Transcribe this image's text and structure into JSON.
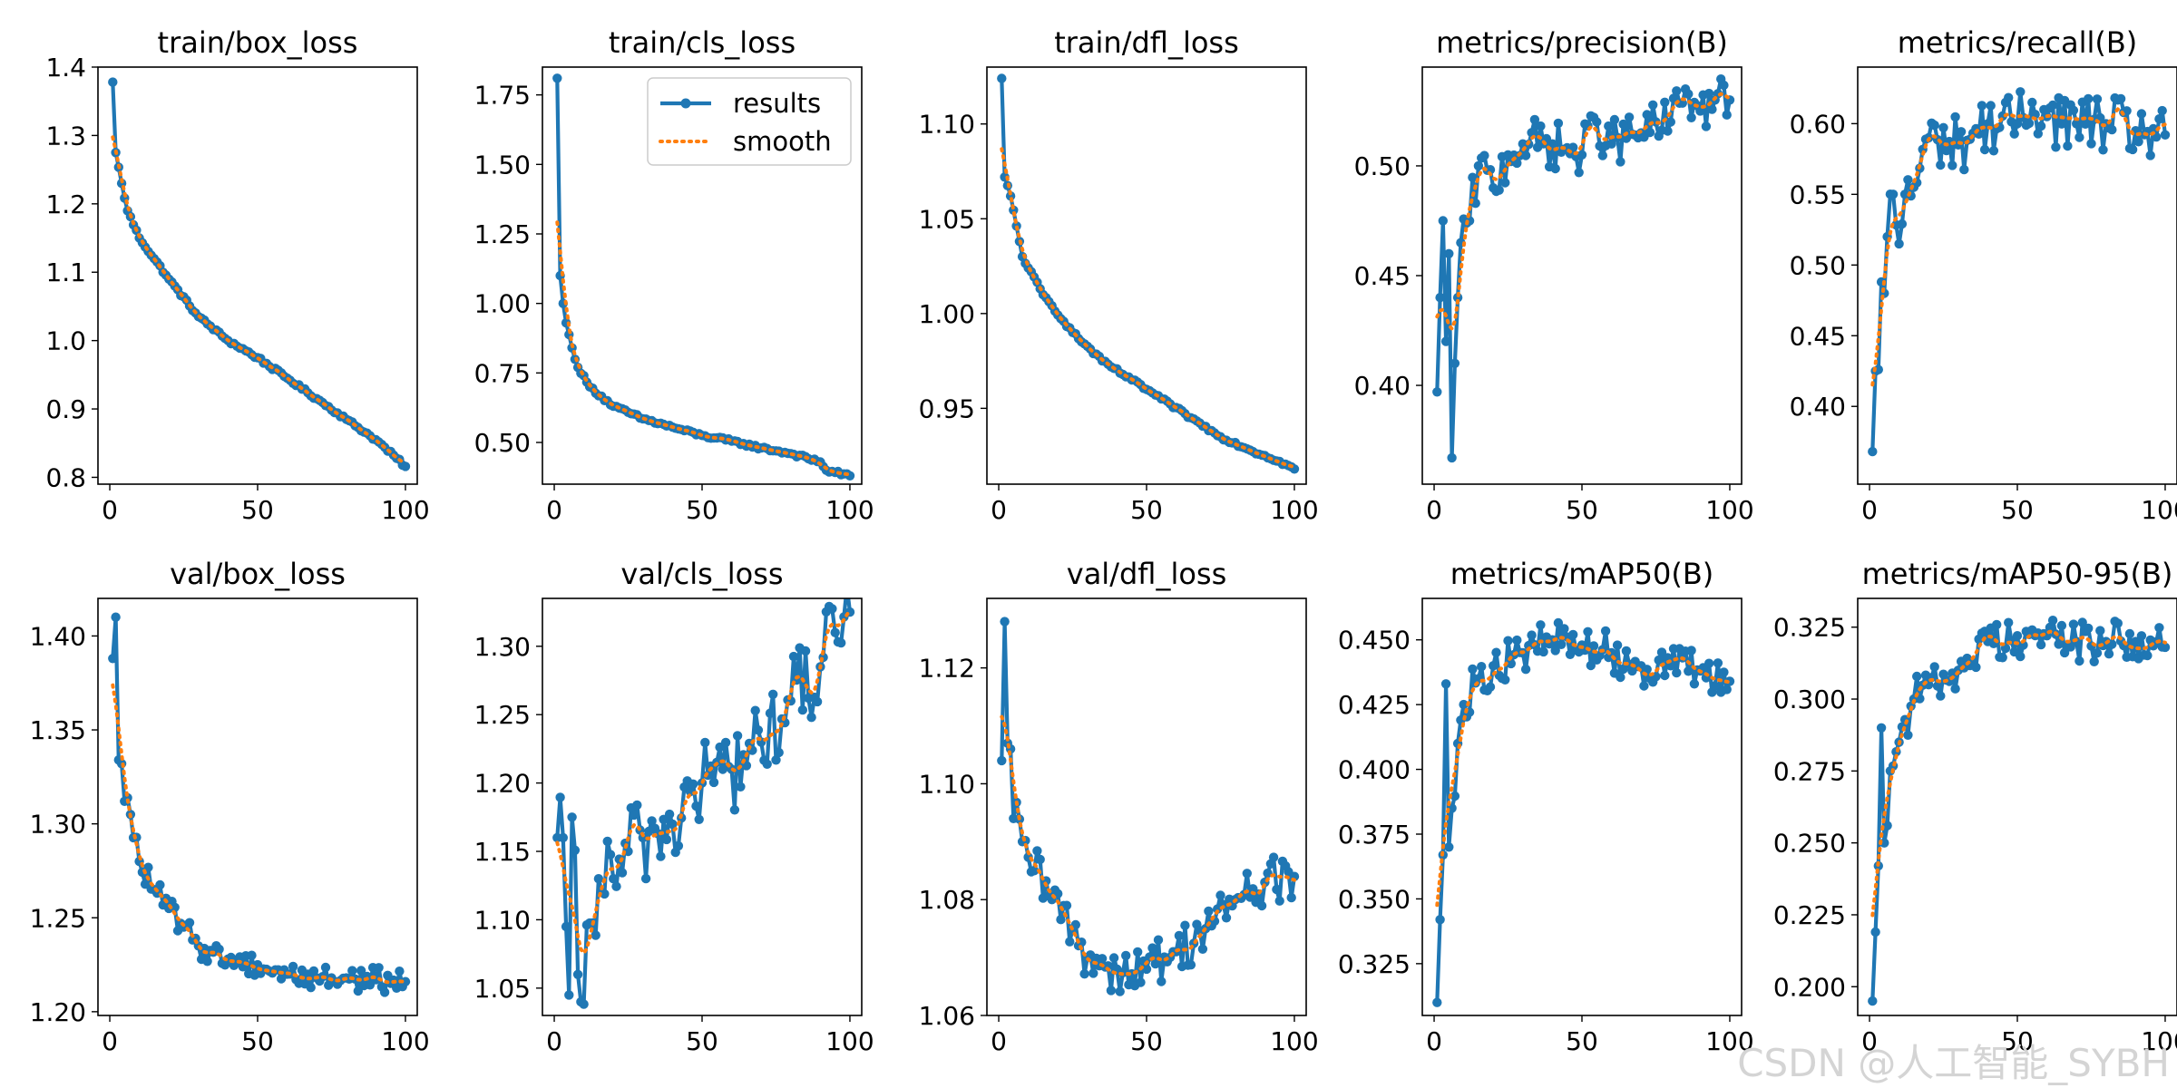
{
  "watermark": "CSDN @人工智能_SYBH",
  "colors": {
    "results": "#1f77b4",
    "smooth": "#ff7f0e",
    "axis": "#000000"
  },
  "legend": {
    "results": "results",
    "smooth": "smooth",
    "location": "upper right",
    "panel": "train/cls_loss"
  },
  "chart_data": [
    {
      "type": "line",
      "title": "train/box_loss",
      "xlim": [
        -4,
        104
      ],
      "ylim": [
        0.79,
        1.4
      ],
      "xticks": [
        0,
        50,
        100
      ],
      "yticks": [
        0.8,
        0.9,
        1.0,
        1.1,
        1.2,
        1.3,
        1.4
      ],
      "x": [
        1,
        100
      ],
      "start": 1.378,
      "end": 0.816,
      "key_points": [
        [
          1,
          1.378
        ],
        [
          2,
          1.275
        ],
        [
          4,
          1.23
        ],
        [
          6,
          1.19
        ],
        [
          10,
          1.15
        ],
        [
          20,
          1.09
        ],
        [
          30,
          1.035
        ],
        [
          40,
          1.0
        ],
        [
          50,
          0.975
        ],
        [
          60,
          0.945
        ],
        [
          70,
          0.915
        ],
        [
          80,
          0.885
        ],
        [
          90,
          0.855
        ],
        [
          100,
          0.816
        ]
      ],
      "series": [
        {
          "name": "results"
        },
        {
          "name": "smooth"
        }
      ]
    },
    {
      "type": "line",
      "title": "train/cls_loss",
      "xlim": [
        -4,
        104
      ],
      "ylim": [
        0.35,
        1.85
      ],
      "xticks": [
        0,
        50,
        100
      ],
      "yticks": [
        0.5,
        0.75,
        1.0,
        1.25,
        1.5,
        1.75
      ],
      "start": 1.81,
      "end": 0.38,
      "key_points": [
        [
          1,
          1.81
        ],
        [
          2,
          1.1
        ],
        [
          3,
          1.0
        ],
        [
          4,
          0.93
        ],
        [
          6,
          0.84
        ],
        [
          8,
          0.77
        ],
        [
          12,
          0.7
        ],
        [
          20,
          0.63
        ],
        [
          30,
          0.585
        ],
        [
          40,
          0.555
        ],
        [
          50,
          0.525
        ],
        [
          60,
          0.505
        ],
        [
          70,
          0.48
        ],
        [
          80,
          0.46
        ],
        [
          90,
          0.43
        ],
        [
          92,
          0.4
        ],
        [
          100,
          0.38
        ]
      ],
      "series": [
        {
          "name": "results"
        },
        {
          "name": "smooth"
        }
      ]
    },
    {
      "type": "line",
      "title": "train/dfl_loss",
      "xlim": [
        -4,
        104
      ],
      "ylim": [
        0.91,
        1.13
      ],
      "xticks": [
        0,
        50,
        100
      ],
      "yticks": [
        0.95,
        1.0,
        1.05,
        1.1
      ],
      "start": 1.124,
      "end": 0.918,
      "key_points": [
        [
          1,
          1.124
        ],
        [
          2,
          1.072
        ],
        [
          4,
          1.062
        ],
        [
          8,
          1.03
        ],
        [
          15,
          1.01
        ],
        [
          25,
          0.99
        ],
        [
          35,
          0.975
        ],
        [
          45,
          0.965
        ],
        [
          55,
          0.955
        ],
        [
          65,
          0.945
        ],
        [
          75,
          0.935
        ],
        [
          85,
          0.928
        ],
        [
          95,
          0.922
        ],
        [
          100,
          0.918
        ]
      ],
      "series": [
        {
          "name": "results"
        },
        {
          "name": "smooth"
        }
      ]
    },
    {
      "type": "line",
      "title": "metrics/precision(B)",
      "xlim": [
        -4,
        104
      ],
      "ylim": [
        0.355,
        0.545
      ],
      "xticks": [
        0,
        50,
        100
      ],
      "yticks": [
        0.4,
        0.45,
        0.5
      ],
      "key_points": [
        [
          1,
          0.397
        ],
        [
          2,
          0.44
        ],
        [
          3,
          0.475
        ],
        [
          4,
          0.42
        ],
        [
          5,
          0.46
        ],
        [
          6,
          0.367
        ],
        [
          7,
          0.41
        ],
        [
          8,
          0.44
        ],
        [
          9,
          0.465
        ],
        [
          12,
          0.475
        ],
        [
          15,
          0.5
        ],
        [
          20,
          0.49
        ],
        [
          25,
          0.505
        ],
        [
          30,
          0.51
        ],
        [
          40,
          0.51
        ],
        [
          50,
          0.505
        ],
        [
          55,
          0.52
        ],
        [
          60,
          0.51
        ],
        [
          70,
          0.515
        ],
        [
          80,
          0.52
        ],
        [
          85,
          0.535
        ],
        [
          90,
          0.525
        ],
        [
          95,
          0.53
        ],
        [
          100,
          0.53
        ]
      ],
      "series": [
        {
          "name": "results"
        },
        {
          "name": "smooth"
        }
      ]
    },
    {
      "type": "line",
      "title": "metrics/recall(B)",
      "xlim": [
        -4,
        104
      ],
      "ylim": [
        0.345,
        0.64
      ],
      "xticks": [
        0,
        50,
        100
      ],
      "yticks": [
        0.4,
        0.45,
        0.5,
        0.55,
        0.6
      ],
      "key_points": [
        [
          1,
          0.368
        ],
        [
          2,
          0.425
        ],
        [
          3,
          0.426
        ],
        [
          4,
          0.488
        ],
        [
          5,
          0.48
        ],
        [
          6,
          0.52
        ],
        [
          8,
          0.55
        ],
        [
          10,
          0.515
        ],
        [
          12,
          0.55
        ],
        [
          15,
          0.555
        ],
        [
          20,
          0.59
        ],
        [
          30,
          0.585
        ],
        [
          40,
          0.6
        ],
        [
          50,
          0.6
        ],
        [
          55,
          0.615
        ],
        [
          60,
          0.605
        ],
        [
          70,
          0.6
        ],
        [
          80,
          0.6
        ],
        [
          90,
          0.595
        ],
        [
          100,
          0.592
        ]
      ],
      "series": [
        {
          "name": "results"
        },
        {
          "name": "smooth"
        }
      ]
    },
    {
      "type": "line",
      "title": "val/box_loss",
      "xlim": [
        -4,
        104
      ],
      "ylim": [
        1.198,
        1.42
      ],
      "xticks": [
        0,
        50,
        100
      ],
      "yticks": [
        1.2,
        1.25,
        1.3,
        1.35,
        1.4
      ],
      "key_points": [
        [
          1,
          1.388
        ],
        [
          2,
          1.41
        ],
        [
          3,
          1.334
        ],
        [
          4,
          1.332
        ],
        [
          5,
          1.312
        ],
        [
          7,
          1.305
        ],
        [
          10,
          1.28
        ],
        [
          15,
          1.265
        ],
        [
          20,
          1.255
        ],
        [
          25,
          1.245
        ],
        [
          30,
          1.235
        ],
        [
          40,
          1.228
        ],
        [
          50,
          1.225
        ],
        [
          60,
          1.22
        ],
        [
          70,
          1.218
        ],
        [
          80,
          1.218
        ],
        [
          90,
          1.217
        ],
        [
          100,
          1.216
        ]
      ],
      "series": [
        {
          "name": "results"
        },
        {
          "name": "smooth"
        }
      ]
    },
    {
      "type": "line",
      "title": "val/cls_loss",
      "xlim": [
        -4,
        104
      ],
      "ylim": [
        1.03,
        1.335
      ],
      "xticks": [
        0,
        50,
        100
      ],
      "yticks": [
        1.05,
        1.1,
        1.15,
        1.2,
        1.25,
        1.3
      ],
      "key_points": [
        [
          1,
          1.16
        ],
        [
          3,
          1.16
        ],
        [
          4,
          1.095
        ],
        [
          5,
          1.045
        ],
        [
          6,
          1.175
        ],
        [
          8,
          1.06
        ],
        [
          9,
          1.04
        ],
        [
          15,
          1.13
        ],
        [
          20,
          1.13
        ],
        [
          25,
          1.15
        ],
        [
          30,
          1.16
        ],
        [
          40,
          1.17
        ],
        [
          50,
          1.2
        ],
        [
          60,
          1.21
        ],
        [
          70,
          1.23
        ],
        [
          80,
          1.26
        ],
        [
          90,
          1.285
        ],
        [
          95,
          1.31
        ],
        [
          100,
          1.325
        ]
      ],
      "series": [
        {
          "name": "results"
        },
        {
          "name": "smooth"
        }
      ]
    },
    {
      "type": "line",
      "title": "val/dfl_loss",
      "xlim": [
        -4,
        104
      ],
      "ylim": [
        1.06,
        1.132
      ],
      "xticks": [
        0,
        50,
        100
      ],
      "yticks": [
        1.06,
        1.08,
        1.1,
        1.12
      ],
      "key_points": [
        [
          1,
          1.104
        ],
        [
          2,
          1.128
        ],
        [
          3,
          1.107
        ],
        [
          4,
          1.106
        ],
        [
          5,
          1.094
        ],
        [
          8,
          1.09
        ],
        [
          12,
          1.085
        ],
        [
          18,
          1.08
        ],
        [
          25,
          1.075
        ],
        [
          30,
          1.07
        ],
        [
          40,
          1.068
        ],
        [
          50,
          1.068
        ],
        [
          60,
          1.071
        ],
        [
          70,
          1.075
        ],
        [
          80,
          1.08
        ],
        [
          90,
          1.083
        ],
        [
          100,
          1.084
        ]
      ],
      "series": [
        {
          "name": "results"
        },
        {
          "name": "smooth"
        }
      ]
    },
    {
      "type": "line",
      "title": "metrics/mAP50(B)",
      "xlim": [
        -4,
        104
      ],
      "ylim": [
        0.305,
        0.466
      ],
      "xticks": [
        0,
        50,
        100
      ],
      "yticks": [
        0.325,
        0.35,
        0.375,
        0.4,
        0.425,
        0.45
      ],
      "key_points": [
        [
          1,
          0.31
        ],
        [
          2,
          0.342
        ],
        [
          3,
          0.367
        ],
        [
          4,
          0.433
        ],
        [
          5,
          0.37
        ],
        [
          6,
          0.385
        ],
        [
          8,
          0.41
        ],
        [
          10,
          0.425
        ],
        [
          15,
          0.435
        ],
        [
          20,
          0.44
        ],
        [
          30,
          0.445
        ],
        [
          40,
          0.45
        ],
        [
          50,
          0.448
        ],
        [
          60,
          0.445
        ],
        [
          70,
          0.44
        ],
        [
          80,
          0.44
        ],
        [
          90,
          0.438
        ],
        [
          100,
          0.434
        ]
      ],
      "series": [
        {
          "name": "results"
        },
        {
          "name": "smooth"
        }
      ]
    },
    {
      "type": "line",
      "title": "metrics/mAP50-95(B)",
      "xlim": [
        -4,
        104
      ],
      "ylim": [
        0.19,
        0.335
      ],
      "xticks": [
        0,
        50,
        100
      ],
      "yticks": [
        0.2,
        0.225,
        0.25,
        0.275,
        0.3,
        0.325
      ],
      "key_points": [
        [
          1,
          0.195
        ],
        [
          2,
          0.219
        ],
        [
          3,
          0.242
        ],
        [
          4,
          0.29
        ],
        [
          5,
          0.25
        ],
        [
          7,
          0.275
        ],
        [
          10,
          0.285
        ],
        [
          15,
          0.3
        ],
        [
          20,
          0.305
        ],
        [
          30,
          0.31
        ],
        [
          40,
          0.32
        ],
        [
          50,
          0.322
        ],
        [
          60,
          0.322
        ],
        [
          70,
          0.32
        ],
        [
          80,
          0.32
        ],
        [
          90,
          0.32
        ],
        [
          100,
          0.318
        ]
      ],
      "series": [
        {
          "name": "results"
        },
        {
          "name": "smooth"
        }
      ]
    }
  ]
}
